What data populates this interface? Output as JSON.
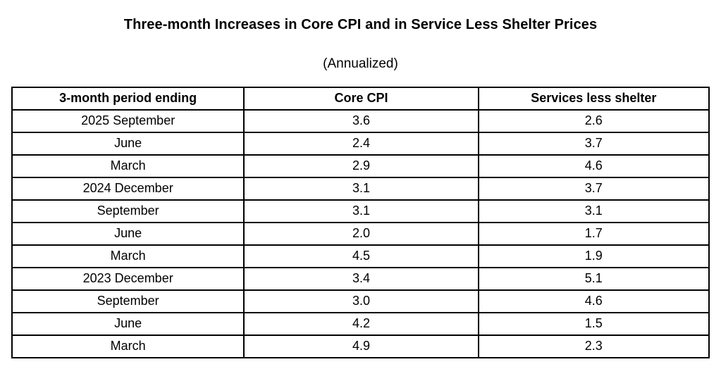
{
  "title": "Three-month Increases in Core CPI and in Service Less Shelter Prices",
  "subtitle": "(Annualized)",
  "table": {
    "headers": [
      "3-month period ending",
      "Core CPI",
      "Services less shelter"
    ],
    "rows": [
      [
        "2025 September",
        "3.6",
        "2.6"
      ],
      [
        "June",
        "2.4",
        "3.7"
      ],
      [
        "March",
        "2.9",
        "4.6"
      ],
      [
        "2024 December",
        "3.1",
        "3.7"
      ],
      [
        "September",
        "3.1",
        "3.1"
      ],
      [
        "June",
        "2.0",
        "1.7"
      ],
      [
        "March",
        "4.5",
        "1.9"
      ],
      [
        "2023 December",
        "3.4",
        "5.1"
      ],
      [
        "September",
        "3.0",
        "4.6"
      ],
      [
        "June",
        "4.2",
        "1.5"
      ],
      [
        "March",
        "4.9",
        "2.3"
      ]
    ]
  },
  "chart_data": {
    "type": "table",
    "title": "Three-month Increases in Core CPI and in Service Less Shelter Prices",
    "subtitle": "(Annualized)",
    "columns": [
      "3-month period ending",
      "Core CPI",
      "Services less shelter"
    ],
    "categories": [
      "2025 September",
      "2025 June",
      "2025 March",
      "2024 December",
      "2024 September",
      "2024 June",
      "2024 March",
      "2023 December",
      "2023 September",
      "2023 June",
      "2023 March"
    ],
    "series": [
      {
        "name": "Core CPI",
        "values": [
          3.6,
          2.4,
          2.9,
          3.1,
          3.1,
          2.0,
          4.5,
          3.4,
          3.0,
          4.2,
          4.9
        ]
      },
      {
        "name": "Services less shelter",
        "values": [
          2.6,
          3.7,
          4.6,
          3.7,
          3.1,
          1.7,
          1.9,
          5.1,
          4.6,
          1.5,
          2.3
        ]
      }
    ]
  },
  "colors": {
    "border": "#000000",
    "text": "#000000",
    "background": "#ffffff"
  }
}
